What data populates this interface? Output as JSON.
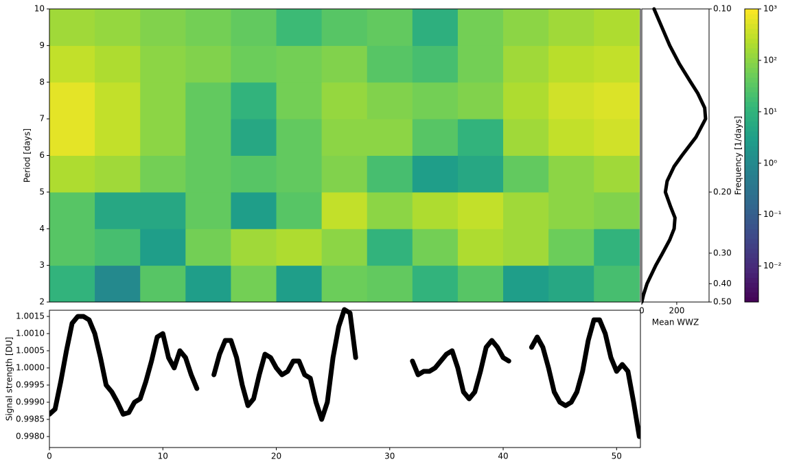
{
  "chart_data": [
    {
      "type": "heatmap",
      "ylabel": "Period [days]",
      "colormap": "viridis",
      "xbins": [
        0,
        4,
        8,
        12,
        16,
        20,
        24,
        28,
        32,
        36,
        40,
        44,
        48,
        52
      ],
      "ybins": [
        2,
        3,
        4,
        5,
        6,
        7,
        8,
        9,
        10
      ],
      "z": [
        [
          10,
          1,
          30,
          3,
          60,
          3,
          50,
          40,
          10,
          30,
          3,
          5,
          20
        ],
        [
          30,
          20,
          3,
          60,
          150,
          200,
          100,
          10,
          60,
          200,
          150,
          50,
          10
        ],
        [
          30,
          5,
          5,
          40,
          3,
          30,
          300,
          100,
          200,
          300,
          150,
          100,
          80
        ],
        [
          200,
          150,
          60,
          40,
          30,
          40,
          80,
          20,
          3,
          5,
          40,
          100,
          150
        ],
        [
          600,
          300,
          100,
          40,
          5,
          40,
          100,
          100,
          30,
          10,
          150,
          300,
          400
        ],
        [
          600,
          300,
          100,
          40,
          10,
          60,
          120,
          80,
          60,
          80,
          200,
          400,
          500
        ],
        [
          300,
          200,
          100,
          80,
          50,
          60,
          80,
          30,
          20,
          60,
          150,
          250,
          300
        ],
        [
          150,
          120,
          80,
          60,
          40,
          15,
          30,
          40,
          8,
          60,
          100,
          150,
          200
        ]
      ],
      "xlim": [
        0,
        52.1
      ],
      "ylim": [
        2,
        10
      ],
      "yticks": [
        2,
        3,
        4,
        5,
        6,
        7,
        8,
        9,
        10
      ],
      "zlim": [
        0.002,
        1000
      ],
      "zscale": "log",
      "zticks": [
        {
          "value": 0.01,
          "label": "10⁻²"
        },
        {
          "value": 0.1,
          "label": "10⁻¹"
        },
        {
          "value": 1,
          "label": "10⁰"
        },
        {
          "value": 10,
          "label": "10¹"
        },
        {
          "value": 100,
          "label": "10²"
        },
        {
          "value": 1000,
          "label": "10³"
        }
      ]
    },
    {
      "type": "line",
      "orientation": "horizontal",
      "xlabel": "Mean WWZ",
      "y2label": "Frequency [1/days]",
      "color": "#000000",
      "y": [
        2.0,
        2.2,
        2.5,
        3.0,
        3.3,
        3.7,
        4.0,
        4.3,
        4.6,
        5.0,
        5.3,
        5.7,
        6.0,
        6.5,
        7.0,
        7.3,
        7.7,
        8.0,
        8.5,
        9.0,
        9.5,
        10.0
      ],
      "values": [
        0,
        10,
        30,
        80,
        115,
        160,
        185,
        190,
        165,
        135,
        145,
        185,
        230,
        310,
        365,
        360,
        320,
        280,
        215,
        160,
        115,
        70
      ],
      "xlim": [
        0,
        385
      ],
      "xticks": [
        0,
        200
      ],
      "ylim": [
        2,
        10
      ],
      "y2scale": "reciprocal",
      "y2lim": [
        0.5,
        0.1
      ],
      "y2ticks": [
        {
          "value": 0.1,
          "label": "0.10"
        },
        {
          "value": 0.2,
          "label": "0.20"
        },
        {
          "value": 0.3,
          "label": "0.30"
        },
        {
          "value": 0.4,
          "label": "0.40"
        },
        {
          "value": 0.5,
          "label": "0.50"
        }
      ]
    },
    {
      "type": "line",
      "ylabel": "Signal strength [DU]",
      "color": "#000000",
      "x": [
        0,
        0.5,
        1,
        1.5,
        2,
        2.5,
        3,
        3.5,
        4,
        4.5,
        5,
        5.5,
        6,
        6.5,
        7,
        7.5,
        8,
        8.5,
        9,
        9.5,
        10,
        10.5,
        11,
        11.5,
        12,
        12.5,
        13,
        13.5,
        14,
        14.5,
        15,
        15.5,
        16,
        16.5,
        17,
        17.5,
        18,
        18.5,
        19,
        19.5,
        20,
        20.5,
        21,
        21.5,
        22,
        22.5,
        23,
        23.5,
        24,
        24.5,
        25,
        25.5,
        26,
        26.5,
        27,
        27.5,
        28,
        28.5,
        29,
        29.5,
        30,
        30.5,
        31,
        31.5,
        32,
        32.5,
        33,
        33.5,
        34,
        34.5,
        35,
        35.5,
        36,
        36.5,
        37,
        37.5,
        38,
        38.5,
        39,
        39.5,
        40,
        40.5,
        41,
        41.5,
        42,
        42.5,
        43,
        43.5,
        44,
        44.5,
        45,
        45.5,
        46,
        46.5,
        47,
        47.5,
        48,
        48.5,
        49,
        49.5,
        50,
        50.5,
        51,
        51.5,
        52
      ],
      "values": [
        0.99865,
        0.9988,
        0.9996,
        1.0005,
        1.0013,
        1.0015,
        1.0015,
        1.0014,
        1.001,
        1.0003,
        0.9995,
        0.9993,
        0.999,
        0.99865,
        0.9987,
        0.999,
        0.9991,
        0.9996,
        1.0002,
        1.0009,
        1.001,
        1.0003,
        1.0,
        1.0005,
        1.0003,
        0.9998,
        0.9994,
        null,
        null,
        0.9998,
        1.0004,
        1.0008,
        1.0008,
        1.0003,
        0.9995,
        0.9989,
        0.9991,
        0.9998,
        1.0004,
        1.0003,
        1.0,
        0.9998,
        0.9999,
        1.0002,
        1.0002,
        0.9998,
        0.9997,
        0.999,
        0.9985,
        0.999,
        1.0003,
        1.0012,
        1.0017,
        1.0016,
        1.0003,
        null,
        null,
        null,
        null,
        null,
        null,
        null,
        null,
        null,
        1.0002,
        0.9998,
        0.9999,
        0.9999,
        1.0,
        1.0002,
        1.0004,
        1.0005,
        1.0,
        0.9993,
        0.9991,
        0.9993,
        0.9999,
        1.0006,
        1.0008,
        1.0006,
        1.0003,
        1.0002,
        null,
        null,
        null,
        1.0006,
        1.0009,
        1.0006,
        1.0,
        0.9993,
        0.999,
        0.9989,
        0.999,
        0.9993,
        0.9999,
        1.0008,
        1.0014,
        1.0014,
        1.001,
        1.0003,
        0.9999,
        1.0001,
        0.9999,
        0.999,
        0.998
      ],
      "xlim": [
        0,
        52.1
      ],
      "xticks": [
        0,
        10,
        20,
        30,
        40,
        50
      ],
      "ylim": [
        0.99768,
        1.00168
      ],
      "yticks": [
        {
          "value": 0.998,
          "label": "0.9980"
        },
        {
          "value": 0.9985,
          "label": "0.9985"
        },
        {
          "value": 0.999,
          "label": "0.9990"
        },
        {
          "value": 0.9995,
          "label": "0.9995"
        },
        {
          "value": 1.0,
          "label": "1.0000"
        },
        {
          "value": 1.0005,
          "label": "1.0005"
        },
        {
          "value": 1.001,
          "label": "1.0010"
        },
        {
          "value": 1.0015,
          "label": "1.0015"
        }
      ]
    }
  ]
}
